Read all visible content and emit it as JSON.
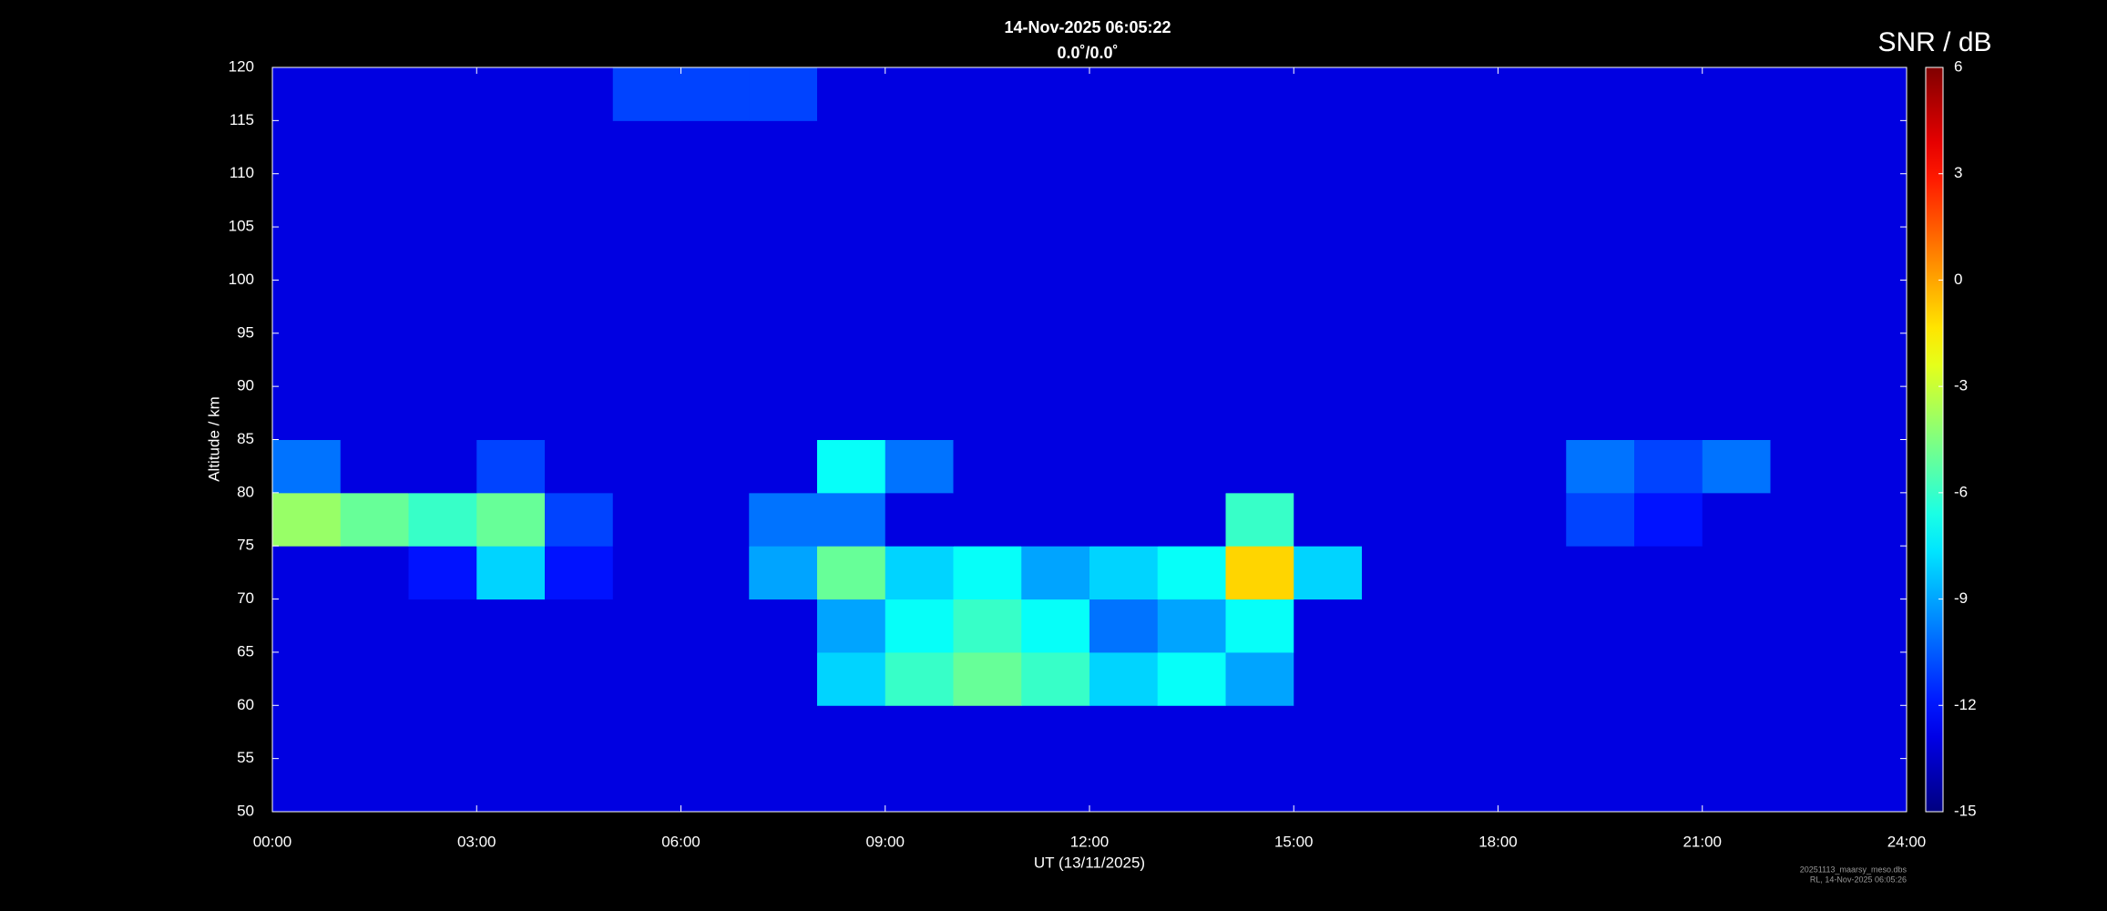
{
  "chart_data": {
    "type": "heatmap",
    "title": "14-Nov-2025 06:05:22",
    "subtitle": "0.0˚/0.0˚",
    "x_label": "UT (13/11/2025)",
    "y_label": "Altitude / km",
    "colorbar_label": "SNR / dB",
    "footnote": [
      "20251113_maarsy_meso.dbs",
      "RL, 14-Nov-2025 06:05:26"
    ],
    "colormap": "jet",
    "xbins": [
      0,
      1,
      2,
      3,
      4,
      5,
      6,
      7,
      8,
      9,
      10,
      11,
      12,
      13,
      14,
      15,
      16,
      17,
      18,
      19,
      20,
      21,
      22,
      23,
      24
    ],
    "ybins": [
      50,
      55,
      60,
      65,
      70,
      75,
      80,
      85,
      90,
      95,
      100,
      105,
      110,
      115,
      120
    ],
    "z": [
      [
        -13,
        -13,
        -13,
        -13,
        -13,
        -13,
        -13,
        -13,
        -13,
        -13,
        -13,
        -13,
        -13,
        -13,
        -13,
        -13,
        -13,
        -13,
        -13,
        -13,
        -13,
        -13,
        -13,
        -13
      ],
      [
        -13,
        -13,
        -13,
        -13,
        -13,
        -13,
        -13,
        -13,
        -13,
        -13,
        -13,
        -13,
        -13,
        -13,
        -13,
        -13,
        -13,
        -13,
        -13,
        -13,
        -13,
        -13,
        -13,
        -13
      ],
      [
        -13,
        -13,
        -13,
        -13,
        -13,
        -13,
        -13,
        -13,
        -8,
        -6,
        -5,
        -6,
        -8,
        -7,
        -9,
        -13,
        -13,
        -13,
        -13,
        -13,
        -13,
        -13,
        -13,
        -13
      ],
      [
        -13,
        -13,
        -13,
        -13,
        -13,
        -13,
        -13,
        -13,
        -9,
        -7,
        -6,
        -7,
        -10,
        -9,
        -7,
        -13,
        -13,
        -13,
        -13,
        -13,
        -13,
        -13,
        -13,
        -13
      ],
      [
        -13,
        -13,
        -12,
        -8,
        -12,
        -13,
        -13,
        -9,
        -5,
        -8,
        -7,
        -9,
        -8,
        -7,
        -1,
        -8,
        -13,
        -13,
        -13,
        -13,
        -13,
        -13,
        -13,
        -13
      ],
      [
        -4,
        -5,
        -6,
        -5,
        -11,
        -13,
        -13,
        -10,
        -10,
        -13,
        -13,
        -13,
        -13,
        -13,
        -6,
        -13,
        -13,
        -13,
        -13,
        -11,
        -12,
        -13,
        -13,
        -13
      ],
      [
        -10,
        -13,
        -13,
        -11,
        -13,
        -13,
        -13,
        -13,
        -7,
        -10,
        -13,
        -13,
        -13,
        -13,
        -13,
        -13,
        -13,
        -13,
        -13,
        -10,
        -11,
        -10,
        -13,
        -13
      ],
      [
        -13,
        -13,
        -13,
        -13,
        -13,
        -13,
        -13,
        -13,
        -13,
        -13,
        -13,
        -13,
        -13,
        -13,
        -13,
        -13,
        -13,
        -13,
        -13,
        -13,
        -13,
        -13,
        -13,
        -13
      ],
      [
        -13,
        -13,
        -13,
        -13,
        -13,
        -13,
        -13,
        -13,
        -13,
        -13,
        -13,
        -13,
        -13,
        -13,
        -13,
        -13,
        -13,
        -13,
        -13,
        -13,
        -13,
        -13,
        -13,
        -13
      ],
      [
        -13,
        -13,
        -13,
        -13,
        -13,
        -13,
        -13,
        -13,
        -13,
        -13,
        -13,
        -13,
        -13,
        -13,
        -13,
        -13,
        -13,
        -13,
        -13,
        -13,
        -13,
        -13,
        -13,
        -13
      ],
      [
        -13,
        -13,
        -13,
        -13,
        -13,
        -13,
        -13,
        -13,
        -13,
        -13,
        -13,
        -13,
        -13,
        -13,
        -13,
        -13,
        -13,
        -13,
        -13,
        -13,
        -13,
        -13,
        -13,
        -13
      ],
      [
        -13,
        -13,
        -13,
        -13,
        -13,
        -13,
        -13,
        -13,
        -13,
        -13,
        -13,
        -13,
        -13,
        -13,
        -13,
        -13,
        -13,
        -13,
        -13,
        -13,
        -13,
        -13,
        -13,
        -13
      ],
      [
        -13,
        -13,
        -13,
        -13,
        -13,
        -13,
        -13,
        -13,
        -13,
        -13,
        -13,
        -13,
        -13,
        -13,
        -13,
        -13,
        -13,
        -13,
        -13,
        -13,
        -13,
        -13,
        -13,
        -13
      ],
      [
        -13,
        -13,
        -13,
        -13,
        -13,
        -11,
        -11,
        -11,
        -13,
        -13,
        -13,
        -13,
        -13,
        -13,
        -13,
        -13,
        -13,
        -13,
        -13,
        -13,
        -13,
        -13,
        -13,
        -13
      ]
    ],
    "xlim": [
      0,
      24
    ],
    "xticks": [
      {
        "value": 0,
        "label": "00:00"
      },
      {
        "value": 3,
        "label": "03:00"
      },
      {
        "value": 6,
        "label": "06:00"
      },
      {
        "value": 9,
        "label": "09:00"
      },
      {
        "value": 12,
        "label": "12:00"
      },
      {
        "value": 15,
        "label": "15:00"
      },
      {
        "value": 18,
        "label": "18:00"
      },
      {
        "value": 21,
        "label": "21:00"
      },
      {
        "value": 24,
        "label": "24:00"
      }
    ],
    "ylim": [
      50,
      120
    ],
    "yticks": [
      50,
      55,
      60,
      65,
      70,
      75,
      80,
      85,
      90,
      95,
      100,
      105,
      110,
      115,
      120
    ],
    "zlim": [
      -15,
      6
    ],
    "zticks": [
      -15,
      -12,
      -9,
      -6,
      -3,
      0,
      3,
      6
    ]
  }
}
